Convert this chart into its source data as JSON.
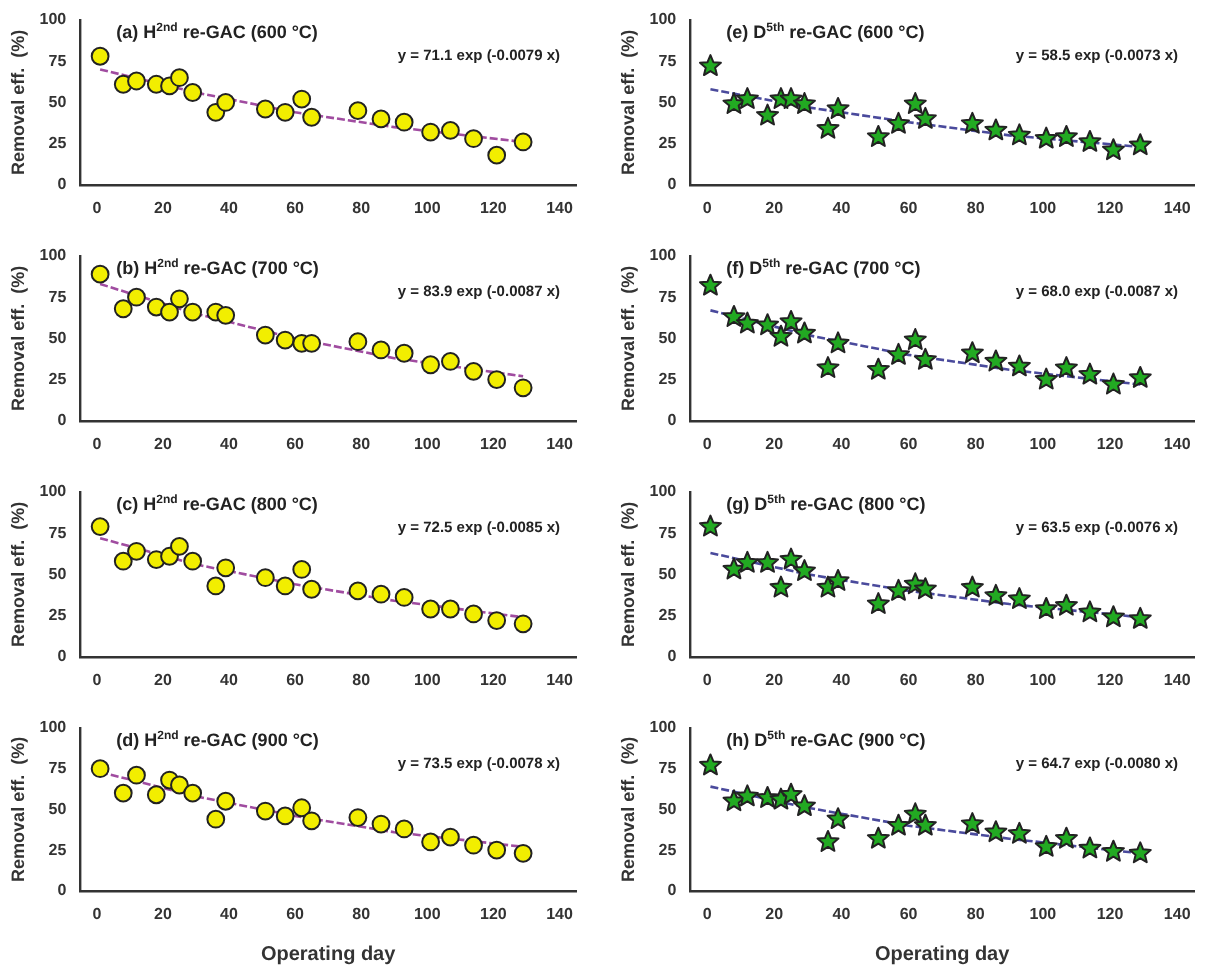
{
  "chart_data": [
    {
      "type": "scatter",
      "title": "(a) H$^{2nd}$ re-GAC (600 °C)",
      "ylabel": "Removal eff.  (%)",
      "annotations": [
        "y = 71.1 exp (-0.0079 x)"
      ],
      "xlim": [
        -5,
        145
      ],
      "ylim": [
        0,
        100
      ],
      "xticks": [
        0,
        20,
        40,
        60,
        80,
        100,
        120,
        140
      ],
      "yticks": [
        0,
        25,
        50,
        75,
        100
      ],
      "x": [
        1,
        8,
        12,
        18,
        22,
        25,
        29,
        36,
        39,
        51,
        57,
        62,
        65,
        79,
        86,
        93,
        101,
        107,
        114,
        121,
        129
      ],
      "series": [
        {
          "color": "#f2ee00",
          "marker": "circle",
          "values": [
            78,
            61,
            63,
            61,
            60,
            65,
            56,
            44,
            50,
            46,
            44,
            52,
            41,
            45,
            40,
            38,
            32,
            33,
            28,
            18,
            26
          ]
        },
        {
          "type": "line",
          "line_style": "dashed",
          "color": "#a04ca0",
          "x": [
            1,
            30,
            60,
            90,
            129
          ],
          "values": [
            70,
            56,
            44,
            35,
            26
          ]
        }
      ]
    },
    {
      "type": "scatter",
      "title": "(e) D$^{5th}$ re-GAC (600 °C)",
      "ylabel": "Removal eff.  (%)",
      "annotations": [
        "y = 58.5 exp (-0.0073 x)"
      ],
      "xlim": [
        -5,
        145
      ],
      "ylim": [
        0,
        100
      ],
      "xticks": [
        0,
        20,
        40,
        60,
        80,
        100,
        120,
        140
      ],
      "yticks": [
        0,
        25,
        50,
        75,
        100
      ],
      "x": [
        1,
        8,
        12,
        18,
        22,
        25,
        29,
        36,
        39,
        51,
        57,
        62,
        65,
        79,
        86,
        93,
        101,
        107,
        114,
        121,
        129
      ],
      "series": [
        {
          "color": "#22aa22",
          "marker": "star",
          "values": [
            72,
            49,
            52,
            42,
            52,
            52,
            49,
            34,
            46,
            29,
            37,
            49,
            40,
            37,
            33,
            30,
            28,
            29,
            26,
            21,
            24
          ]
        },
        {
          "type": "line",
          "line_style": "dashed",
          "color": "#4a4a9c",
          "x": [
            1,
            30,
            60,
            90,
            129
          ],
          "values": [
            58,
            47,
            38,
            30,
            23
          ]
        }
      ]
    },
    {
      "type": "scatter",
      "title": "(b) H$^{2nd}$ re-GAC (700 °C)",
      "ylabel": "Removal eff.  (%)",
      "annotations": [
        "y = 83.9 exp (-0.0087 x)"
      ],
      "xlim": [
        -5,
        145
      ],
      "ylim": [
        0,
        100
      ],
      "xticks": [
        0,
        20,
        40,
        60,
        80,
        100,
        120,
        140
      ],
      "yticks": [
        0,
        25,
        50,
        75,
        100
      ],
      "x": [
        1,
        8,
        12,
        18,
        22,
        25,
        29,
        36,
        39,
        51,
        57,
        62,
        65,
        79,
        86,
        93,
        101,
        107,
        114,
        121,
        129
      ],
      "series": [
        {
          "color": "#f2ee00",
          "marker": "circle",
          "values": [
            89,
            68,
            75,
            69,
            66,
            74,
            66,
            66,
            64,
            52,
            49,
            47,
            47,
            48,
            43,
            41,
            34,
            36,
            30,
            25,
            20
          ]
        },
        {
          "type": "line",
          "line_style": "dashed",
          "color": "#a04ca0",
          "x": [
            1,
            30,
            60,
            90,
            129
          ],
          "values": [
            83,
            65,
            50,
            38,
            27
          ]
        }
      ]
    },
    {
      "type": "scatter",
      "title": "(f) D$^{5th}$ re-GAC (700 °C)",
      "ylabel": "Removal eff.  (%)",
      "annotations": [
        "y = 68.0 exp (-0.0087 x)"
      ],
      "xlim": [
        -5,
        145
      ],
      "ylim": [
        0,
        100
      ],
      "xticks": [
        0,
        20,
        40,
        60,
        80,
        100,
        120,
        140
      ],
      "yticks": [
        0,
        25,
        50,
        75,
        100
      ],
      "x": [
        1,
        8,
        12,
        18,
        22,
        25,
        29,
        36,
        39,
        51,
        57,
        62,
        65,
        79,
        86,
        93,
        101,
        107,
        114,
        121,
        129
      ],
      "series": [
        {
          "color": "#22aa22",
          "marker": "star",
          "values": [
            82,
            63,
            59,
            58,
            51,
            60,
            53,
            32,
            47,
            31,
            40,
            49,
            37,
            41,
            36,
            33,
            25,
            32,
            28,
            22,
            26
          ]
        },
        {
          "type": "line",
          "line_style": "dashed",
          "color": "#4a4a9c",
          "x": [
            1,
            30,
            60,
            90,
            129
          ],
          "values": [
            67,
            52,
            40,
            31,
            22
          ]
        }
      ]
    },
    {
      "type": "scatter",
      "title": "(c) H$^{2nd}$ re-GAC (800 °C)",
      "ylabel": "Removal eff.  (%)",
      "annotations": [
        "y = 72.5 exp (-0.0085 x)"
      ],
      "xlim": [
        -5,
        145
      ],
      "ylim": [
        0,
        100
      ],
      "xticks": [
        0,
        20,
        40,
        60,
        80,
        100,
        120,
        140
      ],
      "yticks": [
        0,
        25,
        50,
        75,
        100
      ],
      "x": [
        1,
        8,
        12,
        18,
        22,
        25,
        29,
        36,
        39,
        51,
        57,
        62,
        65,
        79,
        86,
        93,
        101,
        107,
        114,
        121,
        129
      ],
      "series": [
        {
          "color": "#f2ee00",
          "marker": "circle",
          "values": [
            79,
            58,
            64,
            59,
            61,
            67,
            58,
            43,
            54,
            48,
            43,
            53,
            41,
            40,
            38,
            36,
            29,
            29,
            26,
            22,
            20
          ]
        },
        {
          "type": "line",
          "line_style": "dashed",
          "color": "#a04ca0",
          "x": [
            1,
            30,
            60,
            90,
            129
          ],
          "values": [
            72,
            56,
            44,
            34,
            24
          ]
        }
      ]
    },
    {
      "type": "scatter",
      "title": "(g) D$^{5th}$ re-GAC (800 °C)",
      "ylabel": "Removal eff.  (%)",
      "annotations": [
        "y = 63.5 exp (-0.0076 x)"
      ],
      "xlim": [
        -5,
        145
      ],
      "ylim": [
        0,
        100
      ],
      "xticks": [
        0,
        20,
        40,
        60,
        80,
        100,
        120,
        140
      ],
      "yticks": [
        0,
        25,
        50,
        75,
        100
      ],
      "x": [
        1,
        8,
        12,
        18,
        22,
        25,
        29,
        36,
        39,
        51,
        57,
        62,
        65,
        79,
        86,
        93,
        101,
        107,
        114,
        121,
        129
      ],
      "series": [
        {
          "color": "#22aa22",
          "marker": "star",
          "values": [
            79,
            53,
            57,
            57,
            42,
            59,
            52,
            42,
            46,
            32,
            40,
            44,
            41,
            42,
            37,
            35,
            29,
            31,
            27,
            24,
            23
          ]
        },
        {
          "type": "line",
          "line_style": "dashed",
          "color": "#4a4a9c",
          "x": [
            1,
            30,
            60,
            90,
            129
          ],
          "values": [
            63,
            50,
            40,
            32,
            24
          ]
        }
      ]
    },
    {
      "type": "scatter",
      "title": "(d) H$^{2nd}$ re-GAC (900 °C)",
      "xlabel": "Operating day",
      "ylabel": "Removal eff.  (%)",
      "annotations": [
        "y = 73.5 exp (-0.0078 x)"
      ],
      "xlim": [
        -5,
        145
      ],
      "ylim": [
        0,
        100
      ],
      "xticks": [
        0,
        20,
        40,
        60,
        80,
        100,
        120,
        140
      ],
      "yticks": [
        0,
        25,
        50,
        75,
        100
      ],
      "x": [
        1,
        8,
        12,
        18,
        22,
        25,
        29,
        36,
        39,
        51,
        57,
        62,
        65,
        79,
        86,
        93,
        101,
        107,
        114,
        121,
        129
      ],
      "series": [
        {
          "color": "#f2ee00",
          "marker": "circle",
          "values": [
            75,
            60,
            71,
            59,
            68,
            65,
            60,
            44,
            55,
            49,
            46,
            51,
            43,
            45,
            41,
            38,
            30,
            33,
            28,
            25,
            23
          ]
        },
        {
          "type": "line",
          "line_style": "dashed",
          "color": "#a04ca0",
          "x": [
            1,
            30,
            60,
            90,
            129
          ],
          "values": [
            73,
            58,
            46,
            36,
            27
          ]
        }
      ]
    },
    {
      "type": "scatter",
      "title": "(h) D$^{5th}$ re-GAC (900 °C)",
      "xlabel": "Operating day",
      "ylabel": "Removal eff.  (%)",
      "annotations": [
        "y = 64.7 exp (-0.0080 x)"
      ],
      "xlim": [
        -5,
        145
      ],
      "ylim": [
        0,
        100
      ],
      "xticks": [
        0,
        20,
        40,
        60,
        80,
        100,
        120,
        140
      ],
      "yticks": [
        0,
        25,
        50,
        75,
        100
      ],
      "x": [
        1,
        8,
        12,
        18,
        22,
        25,
        29,
        36,
        39,
        51,
        57,
        62,
        65,
        79,
        86,
        93,
        101,
        107,
        114,
        121,
        129
      ],
      "series": [
        {
          "color": "#22aa22",
          "marker": "star",
          "values": [
            77,
            55,
            58,
            57,
            56,
            59,
            52,
            30,
            44,
            32,
            40,
            47,
            40,
            41,
            36,
            35,
            27,
            32,
            26,
            24,
            23
          ]
        },
        {
          "type": "line",
          "line_style": "dashed",
          "color": "#4a4a9c",
          "x": [
            1,
            30,
            60,
            90,
            129
          ],
          "values": [
            64,
            51,
            40,
            32,
            23
          ]
        }
      ]
    }
  ]
}
